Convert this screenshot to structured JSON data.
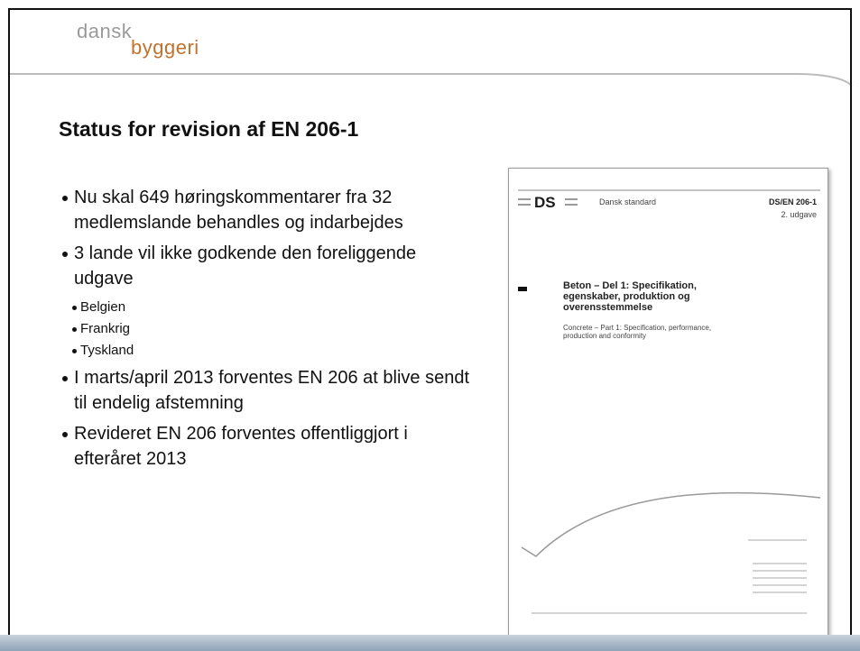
{
  "header": {
    "logo": {
      "top": "dansk",
      "bottom": "byggeri"
    }
  },
  "slide": {
    "title": "Status for revision af EN 206-1",
    "bullets": [
      {
        "text": "Nu skal 649 høringskommentarer fra 32 medlemslande behandles og indarbejdes"
      },
      {
        "text": "3 lande vil ikke godkende den foreliggende udgave",
        "subitems": [
          "Belgien",
          "Frankrig",
          "Tyskland"
        ]
      },
      {
        "text": "I marts/april 2013 forventes EN 206 at blive sendt til endelig afstemning"
      },
      {
        "text": "Revideret EN 206 forventes offentliggjort i efteråret 2013"
      }
    ]
  },
  "document": {
    "logo": "DS",
    "label": "Dansk standard",
    "code": "DS/EN 206-1",
    "edition": "2. udgave",
    "title": "Beton – Del 1: Specifikation, egenskaber, produktion og overensstemmelse",
    "subtitle": "Concrete – Part 1: Specification, performance, production and conformity"
  }
}
